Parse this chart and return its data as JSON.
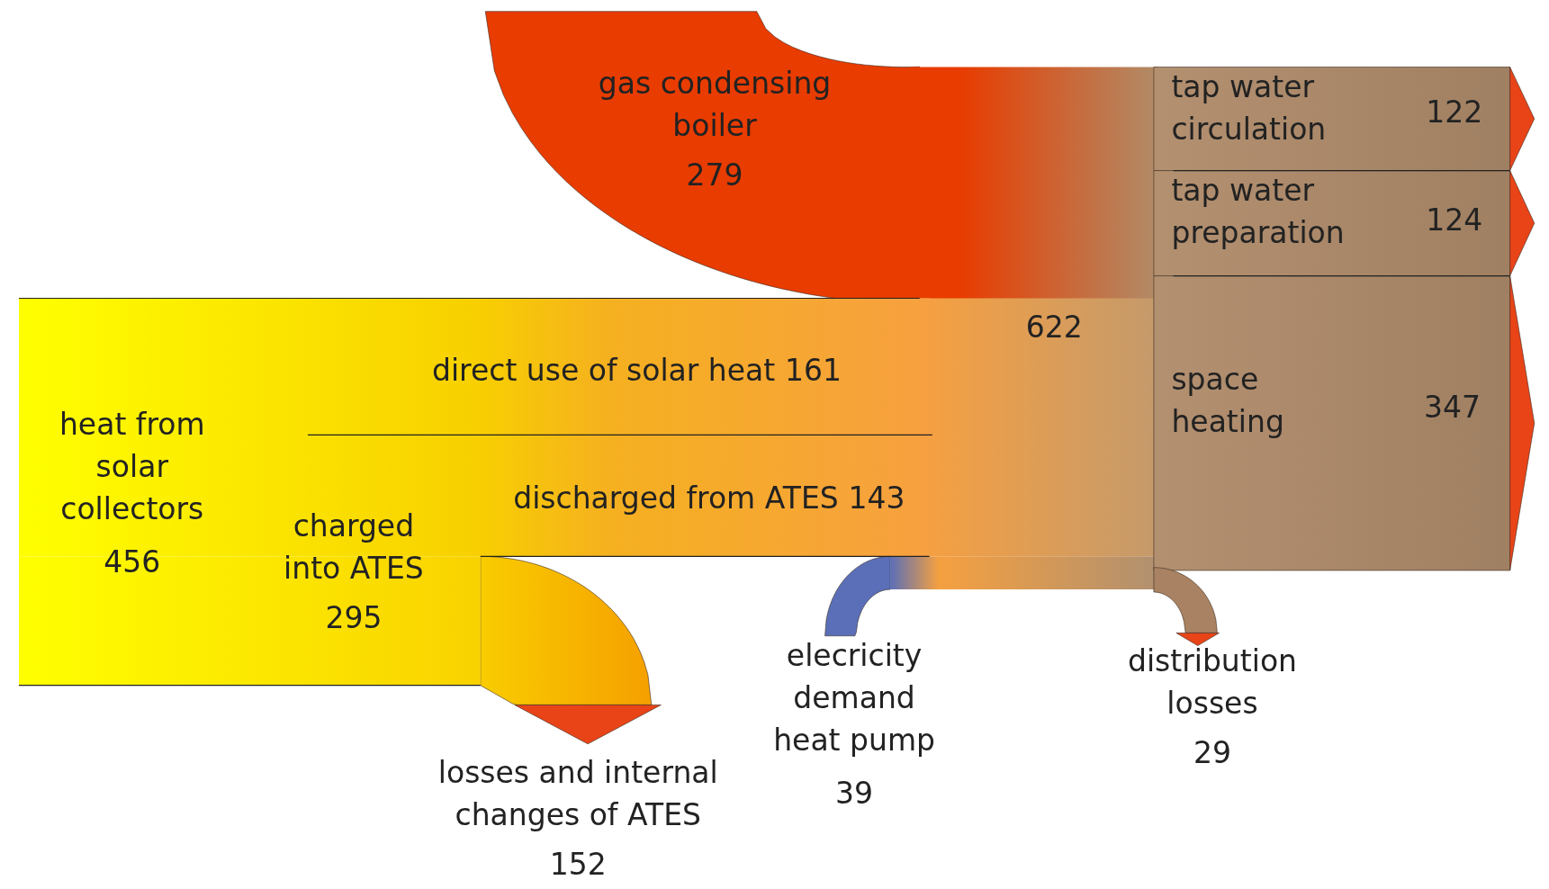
{
  "chart_data": {
    "type": "other",
    "categories": [
      "gas condensing boiler",
      "heat from solar collectors",
      "direct use of solar heat",
      "charged into ATES",
      "discharged from ATES",
      "losses and internal changes of ATES",
      "elecricity demand heat pump",
      "tap water circulation",
      "tap water preparation",
      "space heating",
      "distribution losses"
    ],
    "values": [
      279,
      456,
      161,
      295,
      143,
      152,
      39,
      122,
      124,
      347,
      29
    ],
    "annotations": [
      "622"
    ],
    "data_labels": true
  }
}
